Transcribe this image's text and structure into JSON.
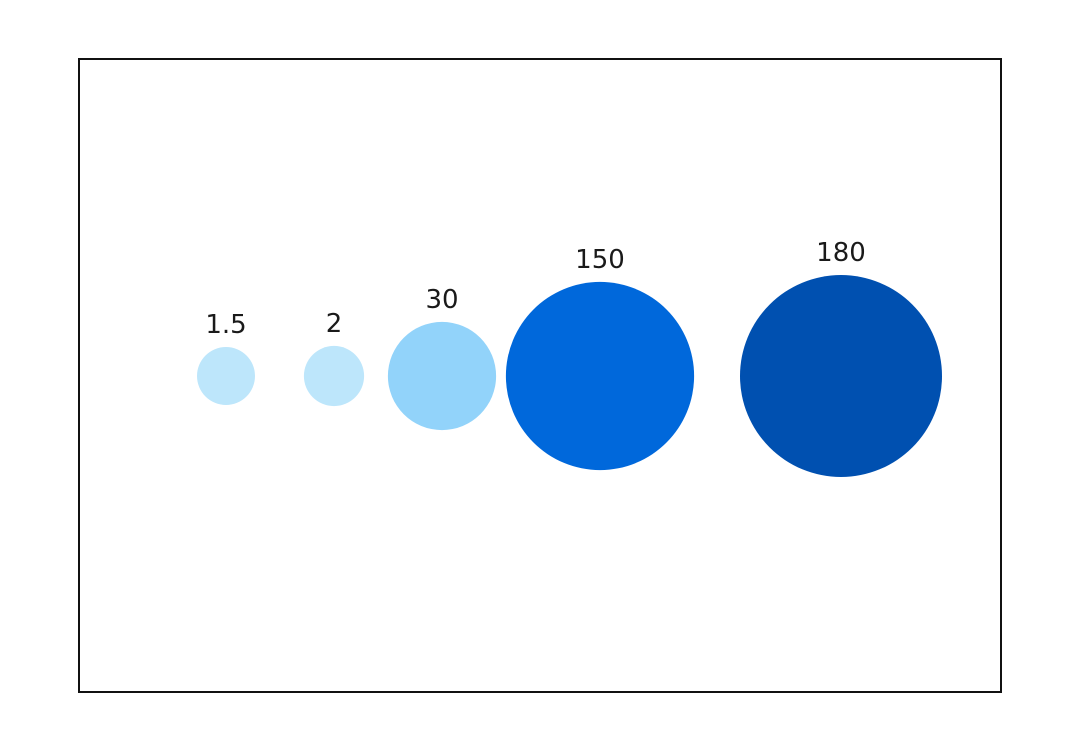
{
  "chart_data": {
    "type": "bubble",
    "title": "",
    "xlabel": "",
    "ylabel": "",
    "grid": false,
    "legend": "none",
    "values": [
      1.5,
      2,
      30,
      150,
      180
    ],
    "labels": [
      "1.5",
      "2",
      "30",
      "150",
      "180"
    ],
    "colors": [
      "#bde6fb",
      "#bde6fb",
      "#92d3fa",
      "#0068db",
      "#0050b0"
    ]
  }
}
